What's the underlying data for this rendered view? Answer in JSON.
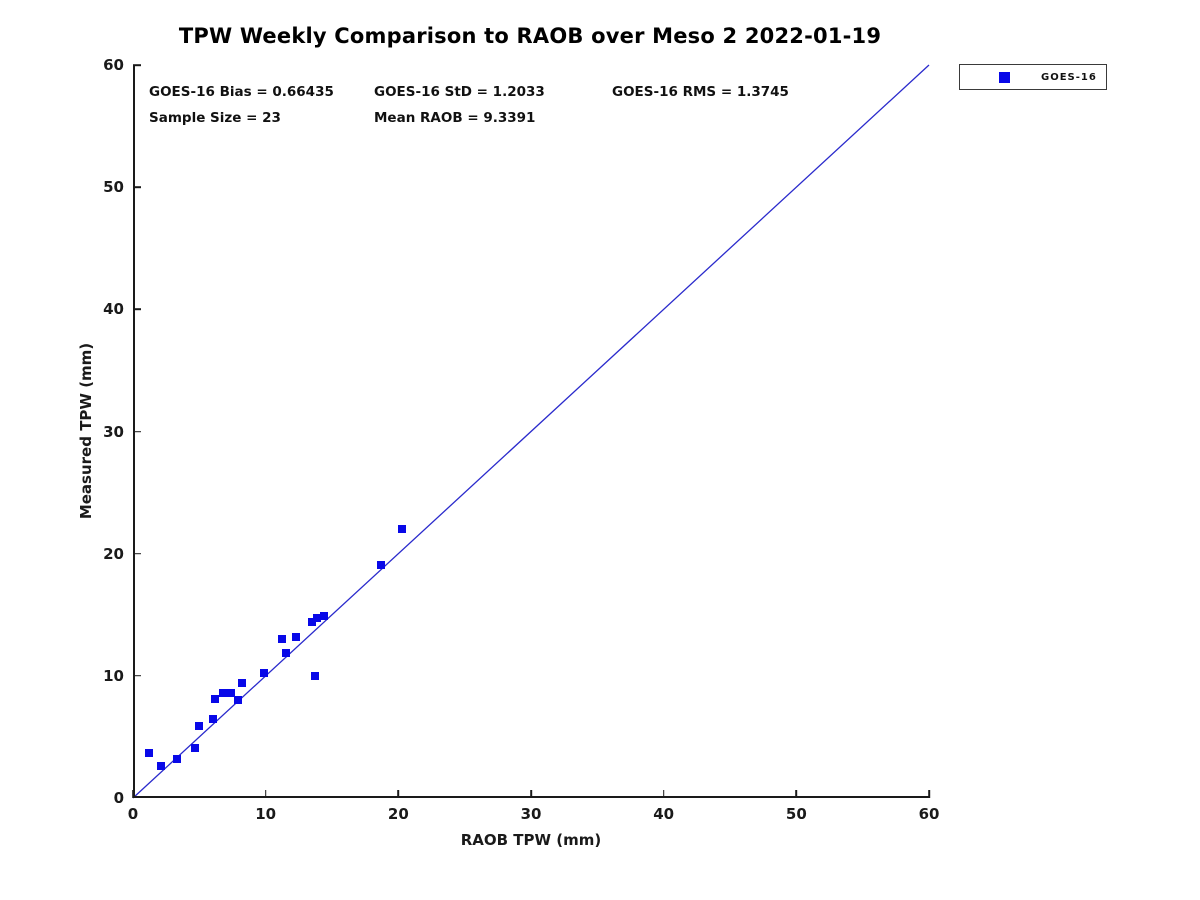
{
  "title": "TPW Weekly Comparison to RAOB over Meso 2 2022-01-19",
  "stats": {
    "bias": "GOES-16 Bias = 0.66435",
    "std": "GOES-16 StD = 1.2033",
    "rms": "GOES-16 RMS = 1.3745",
    "sample_size": "Sample Size = 23",
    "mean_raob": "Mean RAOB = 9.3391"
  },
  "legend": {
    "label": "GOES-16",
    "marker_color": "#0808e8"
  },
  "colors": {
    "marker": "#0808e8",
    "reference_line": "#2a2acc",
    "axis": "#1a1a1a"
  },
  "chart_data": {
    "type": "scatter",
    "title": "TPW Weekly Comparison to RAOB over Meso 2 2022-01-19",
    "xlabel": "RAOB TPW (mm)",
    "ylabel": "Measured TPW (mm)",
    "xlim": [
      0,
      60
    ],
    "ylim": [
      0,
      60
    ],
    "xticks": [
      0,
      10,
      20,
      30,
      40,
      50,
      60
    ],
    "yticks": [
      0,
      10,
      20,
      30,
      40,
      50,
      60
    ],
    "grid": false,
    "legend_position": "top-right-outside",
    "annotations": [
      "GOES-16 Bias = 0.66435",
      "GOES-16 StD = 1.2033",
      "GOES-16 RMS = 1.3745",
      "Sample Size = 23",
      "Mean RAOB = 9.3391"
    ],
    "reference_line": {
      "from": [
        0,
        0
      ],
      "to": [
        60,
        60
      ],
      "style": "solid"
    },
    "series": [
      {
        "name": "GOES-16",
        "marker": "filled-square",
        "sample_size": 23,
        "points": [
          [
            1.2,
            3.7
          ],
          [
            2.1,
            2.6
          ],
          [
            3.3,
            3.2
          ],
          [
            4.7,
            4.1
          ],
          [
            5.0,
            5.9
          ],
          [
            6.0,
            6.5
          ],
          [
            6.0,
            6.5
          ],
          [
            6.2,
            8.1
          ],
          [
            6.8,
            8.6
          ],
          [
            7.4,
            8.6
          ],
          [
            7.4,
            8.6
          ],
          [
            7.9,
            8.0
          ],
          [
            8.2,
            9.4
          ],
          [
            9.9,
            10.2
          ],
          [
            11.2,
            13.0
          ],
          [
            11.5,
            11.9
          ],
          [
            12.3,
            13.2
          ],
          [
            13.5,
            14.4
          ],
          [
            13.7,
            10.0
          ],
          [
            13.9,
            14.7
          ],
          [
            14.4,
            14.9
          ],
          [
            18.7,
            19.1
          ],
          [
            20.3,
            22.0
          ]
        ]
      }
    ]
  }
}
